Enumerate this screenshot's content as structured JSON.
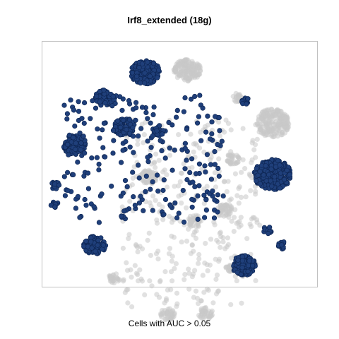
{
  "chart_data": {
    "type": "scatter",
    "title": "Irf8_extended (18g)",
    "xlabel": "Cells with AUC > 0.05",
    "ylabel": "",
    "xlim": [
      -36,
      40
    ],
    "ylim": [
      -38,
      38
    ],
    "axes_visible": false,
    "grid": false,
    "colors": {
      "above_threshold": "#1f3f7a",
      "above_threshold_edge": "#0d2450",
      "below_threshold": "#c8c8c8",
      "frame": "#c0c0c0"
    },
    "series": [
      {
        "name": "above",
        "clusters": [
          {
            "x": -7.6,
            "y": 28.5,
            "r": 4.0,
            "n": 180
          },
          {
            "x": -18.7,
            "y": 20.6,
            "r": 2.7,
            "n": 70
          },
          {
            "x": -13.4,
            "y": 11.6,
            "r": 3.0,
            "n": 95
          },
          {
            "x": -27.2,
            "y": 6.1,
            "r": 3.2,
            "n": 110
          },
          {
            "x": 27.5,
            "y": -3.1,
            "r": 5.1,
            "n": 260
          },
          {
            "x": -21.5,
            "y": -24.9,
            "r": 3.1,
            "n": 95
          },
          {
            "x": 19.6,
            "y": -31.2,
            "r": 3.3,
            "n": 110
          },
          {
            "x": -3.8,
            "y": 10.4,
            "r": 1.8,
            "n": 30
          },
          {
            "x": -32.6,
            "y": -6.5,
            "r": 1.3,
            "n": 15
          },
          {
            "x": -32.6,
            "y": -12.5,
            "r": 1.2,
            "n": 12
          },
          {
            "x": 30.1,
            "y": -24.9,
            "r": 1.3,
            "n": 14
          },
          {
            "x": 26.1,
            "y": -20.3,
            "r": 1.3,
            "n": 12
          },
          {
            "x": 20.0,
            "y": 19.6,
            "r": 1.1,
            "n": 10
          }
        ],
        "scatter": {
          "xlim": [
            -30,
            14
          ],
          "ylim": [
            -18,
            22
          ],
          "n": 240
        }
      },
      {
        "name": "below",
        "clusters": [
          {
            "x": 3.9,
            "y": 29.3,
            "r": 3.8,
            "n": 160
          },
          {
            "x": 27.5,
            "y": 12.8,
            "r": 4.8,
            "n": 200
          },
          {
            "x": -6.5,
            "y": -3.8,
            "r": 2.4,
            "n": 50
          },
          {
            "x": 6.0,
            "y": -17.5,
            "r": 2.0,
            "n": 40
          },
          {
            "x": 14.3,
            "y": -14.1,
            "r": 2.2,
            "n": 45
          },
          {
            "x": -16.2,
            "y": -35.1,
            "r": 1.6,
            "n": 25
          },
          {
            "x": -1.5,
            "y": -46.2,
            "r": 2.0,
            "n": 40
          },
          {
            "x": 16.6,
            "y": 1.7,
            "r": 1.8,
            "n": 30
          },
          {
            "x": 9.0,
            "y": -46.0,
            "r": 2.0,
            "n": 35
          },
          {
            "x": 15.9,
            "y": -32.0,
            "r": 1.4,
            "n": 20
          },
          {
            "x": 17.5,
            "y": 20.6,
            "r": 1.5,
            "n": 20
          }
        ],
        "scatter": {
          "xlim": [
            -14,
            24
          ],
          "ylim": [
            -44,
            14
          ],
          "n": 340
        }
      }
    ]
  }
}
